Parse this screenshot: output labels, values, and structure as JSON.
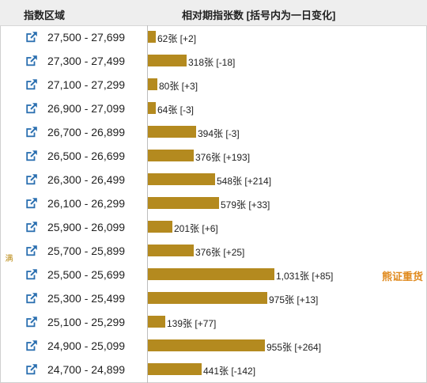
{
  "header": {
    "left_title": "指数区域",
    "right_title": "相对期指张数 [括号内为一日变化]"
  },
  "side_label": "满",
  "watermark": "熊证重货",
  "colors": {
    "bar": "#b48a1f",
    "watermark": "#e08a1e",
    "link": "#2a6fb0"
  },
  "rows": [
    {
      "range": "27,500 - 27,699",
      "count": 62,
      "label": "62张 [+2]",
      "icon": "external-link-icon"
    },
    {
      "range": "27,300 - 27,499",
      "count": 318,
      "label": "318张 [-18]",
      "icon": "external-link-icon"
    },
    {
      "range": "27,100 - 27,299",
      "count": 80,
      "label": "80张 [+3]",
      "icon": "external-link-icon"
    },
    {
      "range": "26,900 - 27,099",
      "count": 64,
      "label": "64张 [-3]",
      "icon": "external-link-icon"
    },
    {
      "range": "26,700 - 26,899",
      "count": 394,
      "label": "394张 [-3]",
      "icon": "external-link-icon"
    },
    {
      "range": "26,500 - 26,699",
      "count": 376,
      "label": "376张 [+193]",
      "icon": "external-link-icon"
    },
    {
      "range": "26,300 - 26,499",
      "count": 548,
      "label": "548张 [+214]",
      "icon": "external-link-icon"
    },
    {
      "range": "26,100 - 26,299",
      "count": 579,
      "label": "579张 [+33]",
      "icon": "external-link-icon"
    },
    {
      "range": "25,900 - 26,099",
      "count": 201,
      "label": "201张 [+6]",
      "icon": "external-link-icon"
    },
    {
      "range": "25,700 - 25,899",
      "count": 376,
      "label": "376张 [+25]",
      "icon": "external-link-icon"
    },
    {
      "range": "25,500 - 25,699",
      "count": 1031,
      "label": "1,031张 [+85]",
      "icon": "external-link-icon"
    },
    {
      "range": "25,300 - 25,499",
      "count": 975,
      "label": "975张 [+13]",
      "icon": "external-link-icon"
    },
    {
      "range": "25,100 - 25,299",
      "count": 139,
      "label": "139张 [+77]",
      "icon": "external-link-icon"
    },
    {
      "range": "24,900 - 25,099",
      "count": 955,
      "label": "955张 [+264]",
      "icon": "external-link-icon"
    },
    {
      "range": "24,700 - 24,899",
      "count": 441,
      "label": "441张 [-142]",
      "icon": "external-link-icon"
    }
  ]
}
